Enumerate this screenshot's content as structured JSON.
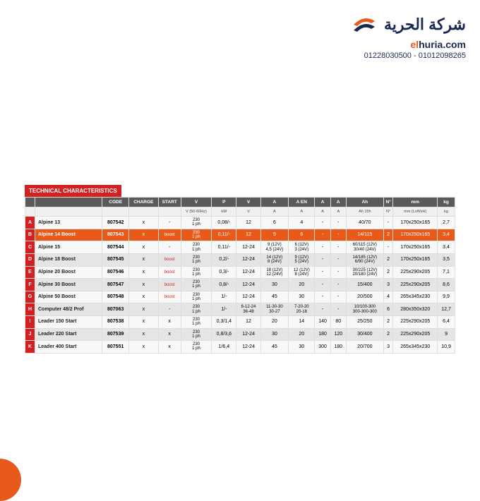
{
  "logo": {
    "arabic_title": "شركة الحرية",
    "url_el": "el",
    "url_huria": "huria.com",
    "phones": "01228030500 - 01012098265",
    "swoosh_color": "#e85a1a",
    "text_color": "#1a2850"
  },
  "table": {
    "title": "TECHNICAL CHARACTERISTICS",
    "header_bg": "#5a5a5a",
    "title_bg": "#d32020",
    "highlight_bg": "#e85a1a",
    "headers": [
      "CODE",
      "CHARGE",
      "START",
      "V",
      "P",
      "V",
      "A",
      "A EN",
      "A",
      "A",
      "Ah",
      "N°",
      "mm",
      "kg"
    ],
    "subheaders": [
      "",
      "",
      "",
      "V (50-60Hz)",
      "kW",
      "V",
      "A",
      "A",
      "A",
      "A",
      "Ah 15h",
      "N°",
      "mm (LxWxH)",
      "kg"
    ],
    "rows": [
      {
        "label": "A",
        "name": "Alpine 13",
        "code": "807542",
        "charge": "x",
        "start": "-",
        "v1": "230\n1 ph",
        "p": "0,08/-",
        "v2": "12",
        "a1": "6",
        "a2": "4",
        "a3": "-",
        "a4": "-",
        "ah": "40/70",
        "n": "-",
        "mm": "170x250x165",
        "kg": "2,7",
        "cls": "light"
      },
      {
        "label": "B",
        "name": "Alpine 14 Boost",
        "code": "807543",
        "charge": "x",
        "start": "boost",
        "v1": "230\n1 ph",
        "p": "0,11/-",
        "v2": "12",
        "a1": "9",
        "a2": "6",
        "a3": "-",
        "a4": "-",
        "ah": "14/115",
        "n": "2",
        "mm": "170x250x165",
        "kg": "3,4",
        "cls": "highlight"
      },
      {
        "label": "C",
        "name": "Alpine 15",
        "code": "807544",
        "charge": "x",
        "start": "-",
        "v1": "230\n1 ph",
        "p": "0,11/-",
        "v2": "12-24",
        "a1": "9 (12V)\n4,5 (24V)",
        "a2": "6 (12V)\n3 (24V)",
        "a3": "-",
        "a4": "-",
        "ah": "60/115 (12V)\n30/40 (24V)",
        "n": "-",
        "mm": "170x250x165",
        "kg": "3,4",
        "cls": "light"
      },
      {
        "label": "D",
        "name": "Alpine 18 Boost",
        "code": "807545",
        "charge": "x",
        "start": "boost",
        "v1": "230\n1 ph",
        "p": "0,2/-",
        "v2": "12-24",
        "a1": "14 (12V)\n8 (24V)",
        "a2": "9 (12V)\n5 (24V)",
        "a3": "-",
        "a4": "-",
        "ah": "14/185 (12V)\n6/90 (24V)",
        "n": "2",
        "mm": "170x250x165",
        "kg": "3,5",
        "cls": "gray"
      },
      {
        "label": "E",
        "name": "Alpine 20 Boost",
        "code": "807546",
        "charge": "x",
        "start": "boost",
        "v1": "230\n1 ph",
        "p": "0,3/-",
        "v2": "12-24",
        "a1": "18 (12V)\n12 (24V)",
        "a2": "12 (12V)\n8 (24V)",
        "a3": "-",
        "a4": "-",
        "ah": "30/225 (12V)\n20/180 (24V)",
        "n": "2",
        "mm": "225x290x205",
        "kg": "7,1",
        "cls": "light"
      },
      {
        "label": "F",
        "name": "Alpine 30 Boost",
        "code": "807547",
        "charge": "x",
        "start": "boost",
        "v1": "230\n1 ph",
        "p": "0,8/-",
        "v2": "12-24",
        "a1": "30",
        "a2": "20",
        "a3": "-",
        "a4": "-",
        "ah": "15/400",
        "n": "3",
        "mm": "225x290x205",
        "kg": "8,6",
        "cls": "gray"
      },
      {
        "label": "G",
        "name": "Alpine 50 Boost",
        "code": "807548",
        "charge": "x",
        "start": "boost",
        "v1": "230\n1 ph",
        "p": "1/-",
        "v2": "12-24",
        "a1": "45",
        "a2": "30",
        "a3": "-",
        "a4": "-",
        "ah": "20/500",
        "n": "4",
        "mm": "265x345x230",
        "kg": "9,9",
        "cls": "light"
      },
      {
        "label": "H",
        "name": "Computer 48/2 Prof",
        "code": "807063",
        "charge": "x",
        "start": "-",
        "v1": "230\n1 ph",
        "p": "1/-",
        "v2": "6-12-24\n36-48",
        "a1": "11-30-30\n30-27",
        "a2": "7-20-20\n20-18",
        "a3": "-",
        "a4": "-",
        "ah": "10/100-300\n300-300-300",
        "n": "6",
        "mm": "280x350x320",
        "kg": "12,7",
        "cls": "gray"
      },
      {
        "label": "I",
        "name": "Leader 150 Start",
        "code": "807538",
        "charge": "x",
        "start": "x",
        "v1": "230\n1 ph",
        "p": "0,3/1,4",
        "v2": "12",
        "a1": "20",
        "a2": "14",
        "a3": "140",
        "a4": "80",
        "ah": "25/250",
        "n": "2",
        "mm": "225x290x205",
        "kg": "6,4",
        "cls": "light"
      },
      {
        "label": "J",
        "name": "Leader 220 Start",
        "code": "807539",
        "charge": "x",
        "start": "x",
        "v1": "230\n1 ph",
        "p": "0,8/3,6",
        "v2": "12-24",
        "a1": "30",
        "a2": "20",
        "a3": "180",
        "a4": "120",
        "ah": "30/400",
        "n": "2",
        "mm": "225x290x205",
        "kg": "9",
        "cls": "gray"
      },
      {
        "label": "K",
        "name": "Leader 400 Start",
        "code": "807551",
        "charge": "x",
        "start": "x",
        "v1": "230\n1 ph",
        "p": "1/6,4",
        "v2": "12-24",
        "a1": "45",
        "a2": "30",
        "a3": "300",
        "a4": "180",
        "ah": "20/700",
        "n": "3",
        "mm": "265x345x230",
        "kg": "10,9",
        "cls": "light"
      }
    ]
  }
}
